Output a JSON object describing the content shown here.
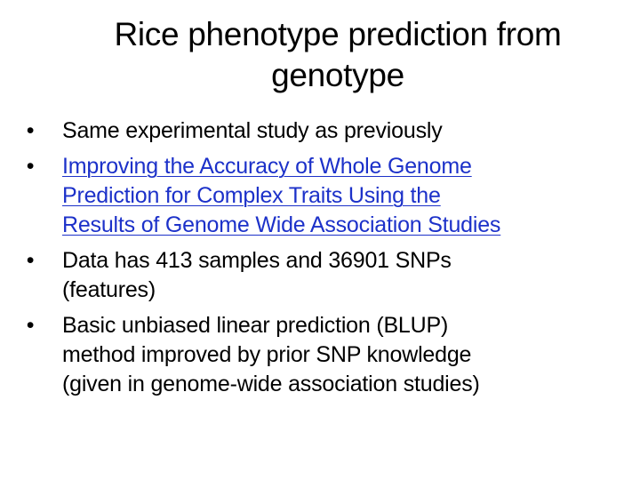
{
  "slide": {
    "title_lines": [
      "Rice phenotype prediction from",
      "genotype"
    ],
    "bullets": [
      {
        "lines": [
          "Same experimental study as previously"
        ],
        "is_link": false
      },
      {
        "lines": [
          "Improving the Accuracy of Whole Genome",
          "Prediction for Complex Traits Using the",
          "Results of Genome Wide Association Studies"
        ],
        "is_link": true
      },
      {
        "lines": [
          "Data has 413 samples and 36901 SNPs",
          "(features)"
        ],
        "is_link": false
      },
      {
        "lines": [
          "Basic unbiased linear prediction (BLUP)",
          "method improved by prior SNP knowledge",
          "(given in genome-wide association studies)"
        ],
        "is_link": false
      }
    ],
    "bullet_glyph": "•"
  },
  "colors": {
    "text": "#000000",
    "link": "#1c31c9",
    "background": "#ffffff"
  }
}
